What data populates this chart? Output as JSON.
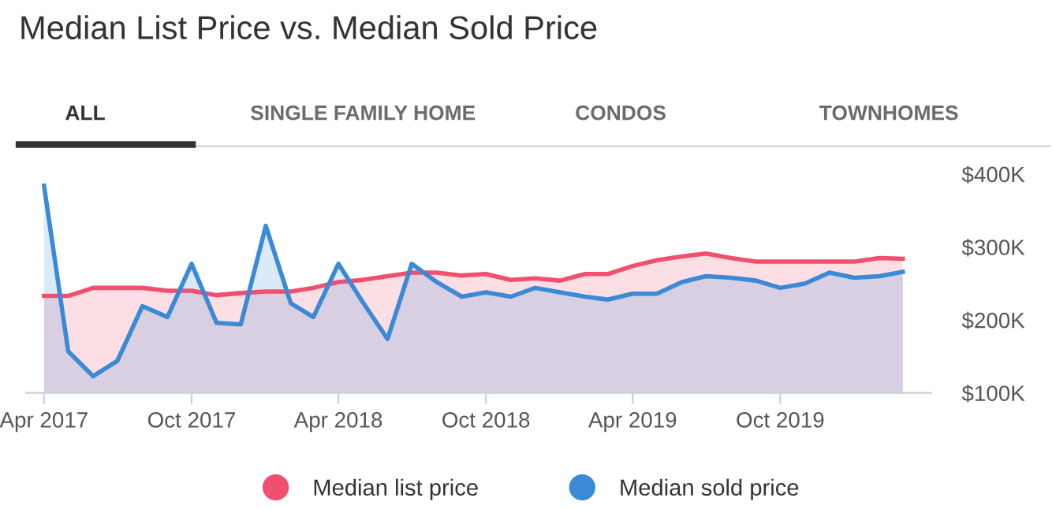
{
  "chart_data": {
    "type": "area",
    "title": "Median List Price vs. Median Sold Price",
    "annotations": [
      "ALL",
      "SINGLE FAMILY HOME",
      "CONDOS",
      "TOWNHOMES"
    ],
    "x": [
      "2017-04",
      "2017-05",
      "2017-06",
      "2017-07",
      "2017-08",
      "2017-09",
      "2017-10",
      "2017-11",
      "2017-12",
      "2018-01",
      "2018-02",
      "2018-03",
      "2018-04",
      "2018-05",
      "2018-06",
      "2018-07",
      "2018-08",
      "2018-09",
      "2018-10",
      "2018-11",
      "2018-12",
      "2019-01",
      "2019-02",
      "2019-03",
      "2019-04",
      "2019-05",
      "2019-06",
      "2019-07",
      "2019-08",
      "2019-09",
      "2019-10",
      "2019-11",
      "2019-12",
      "2020-01",
      "2020-02",
      "2020-03"
    ],
    "series": [
      {
        "name": "Median list price",
        "color": "#f0506e",
        "values": [
          233,
          233,
          244,
          244,
          244,
          240,
          240,
          234,
          237,
          239,
          239,
          244,
          252,
          255,
          260,
          265,
          265,
          261,
          263,
          255,
          257,
          254,
          263,
          263,
          274,
          282,
          287,
          291,
          285,
          280,
          280,
          280,
          280,
          280,
          285,
          284
        ]
      },
      {
        "name": "Median sold price",
        "color": "#3a8ad6",
        "values": [
          384,
          157,
          123,
          144,
          219,
          204,
          277,
          196,
          194,
          329,
          223,
          204,
          277,
          225,
          174,
          277,
          252,
          232,
          238,
          232,
          244,
          238,
          232,
          228,
          236,
          236,
          252,
          260,
          258,
          254,
          244,
          250,
          265,
          258,
          260,
          266
        ]
      }
    ],
    "xlim": [
      "2017-03-10",
      "2020-04-05"
    ],
    "xticks": [
      {
        "value": "2017-04",
        "label": "Apr 2017"
      },
      {
        "value": "2017-10",
        "label": "Oct 2017"
      },
      {
        "value": "2018-04",
        "label": "Apr 2018"
      },
      {
        "value": "2018-10",
        "label": "Oct 2018"
      },
      {
        "value": "2019-04",
        "label": "Apr 2019"
      },
      {
        "value": "2019-10",
        "label": "Oct 2019"
      }
    ],
    "ylim": [
      100,
      400
    ],
    "yticks": [
      {
        "value": 100,
        "label": "$100K"
      },
      {
        "value": 200,
        "label": "$200K"
      },
      {
        "value": 300,
        "label": "$300K"
      },
      {
        "value": 400,
        "label": "$400K"
      }
    ],
    "grid": false,
    "legend": "bottom",
    "marker": "none",
    "line_style": "solid"
  }
}
